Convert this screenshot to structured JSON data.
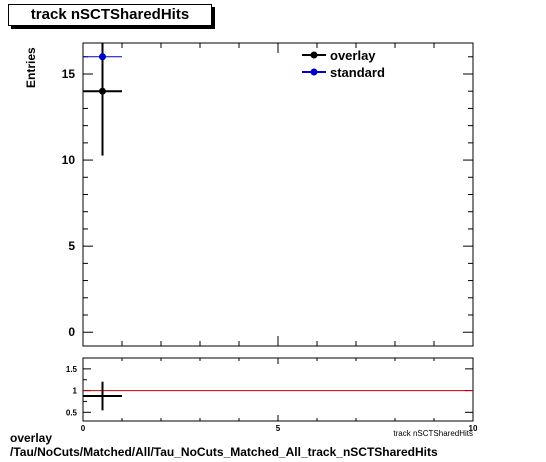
{
  "chart_data": [
    {
      "type": "scatter",
      "title": "track nSCTSharedHits",
      "ylabel": "Entries",
      "xlabel": "track nSCTSharedHits",
      "xlim": [
        0,
        10
      ],
      "ylim": [
        -0.8,
        16.8
      ],
      "y_ticks": [
        0,
        5,
        10,
        15
      ],
      "legend_position": "top-right",
      "series": [
        {
          "name": "overlay",
          "color": "#000000",
          "points": [
            {
              "x": 0.5,
              "y": 14,
              "xerr": 0.5,
              "yerr": 3.74
            }
          ]
        },
        {
          "name": "standard",
          "color": "#0000cc",
          "points": [
            {
              "x": 0.5,
              "y": 16,
              "xerr": 0.5,
              "yerr": 0
            }
          ]
        }
      ]
    },
    {
      "type": "scatter",
      "title": "",
      "xlim": [
        0,
        10
      ],
      "ylim": [
        0.3,
        1.75
      ],
      "x_ticks": [
        0,
        5,
        10
      ],
      "y_ticks": [
        0.5,
        1,
        1.5
      ],
      "y_tick_labels": [
        "0.5",
        "1",
        "1.5"
      ],
      "reference_line": {
        "y": 1,
        "color": "#cc0000"
      },
      "series": [
        {
          "name": "",
          "color": "#000000",
          "points": [
            {
              "x": 0.5,
              "y": 0.875,
              "xerr": 0.5,
              "yerr": 0.33
            }
          ]
        }
      ]
    }
  ],
  "footer": {
    "line1": "overlay",
    "line2": "/Tau/NoCuts/Matched/All/Tau_NoCuts_Matched_All_track_nSCTSharedHits"
  }
}
